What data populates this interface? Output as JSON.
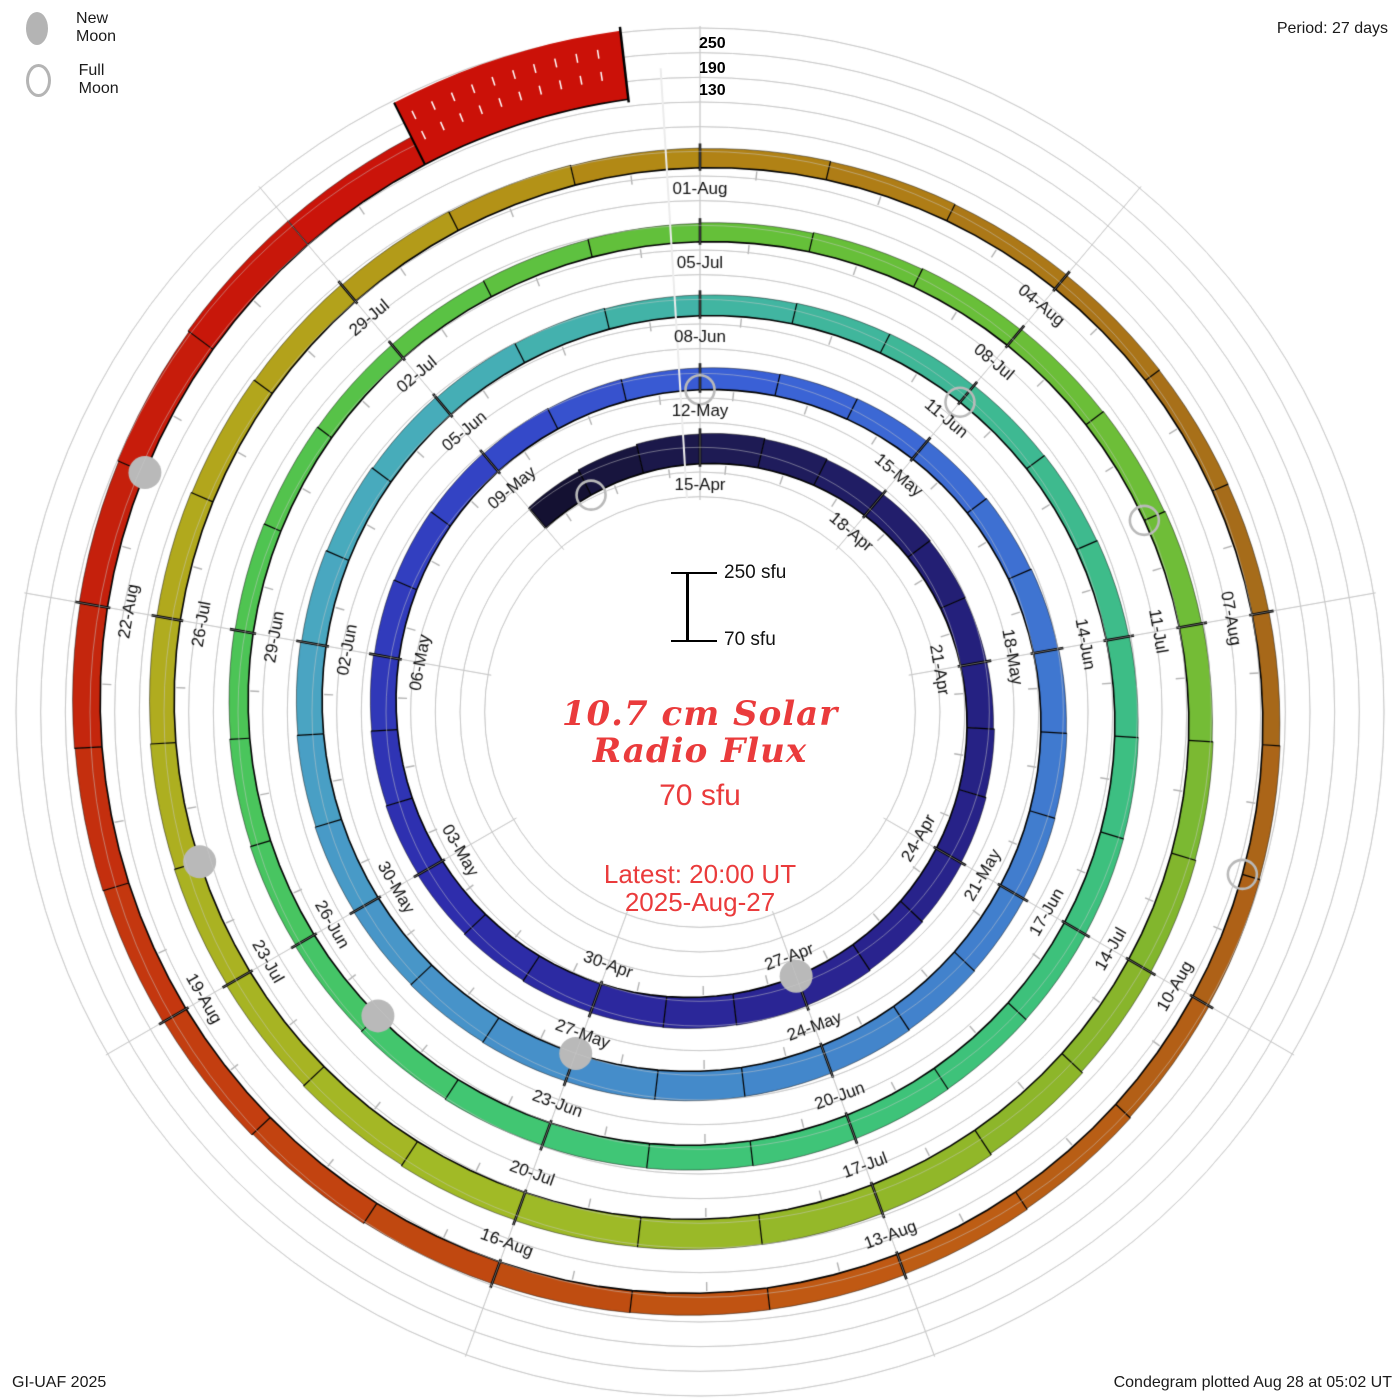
{
  "header": {
    "period_label": "Period: 27 days"
  },
  "legend": {
    "new_moon_label": "New Moon",
    "full_moon_label": "Full Moon"
  },
  "footer": {
    "credit": "GI-UAF 2025",
    "plotted": "Condegram plotted Aug 28 at 05:02 UT"
  },
  "center": {
    "title_line1": "10.7 cm Solar",
    "title_line2": "Radio Flux",
    "current_value": "70 sfu",
    "latest_line1": "Latest: 20:00 UT",
    "latest_line2": "2025-Aug-27"
  },
  "scale": {
    "max_label": "250 sfu",
    "min_label": "70 sfu",
    "axis_ticks": [
      "250",
      "190",
      "130"
    ]
  },
  "chart_data": {
    "type": "spiral-bar (condegram)",
    "title": "10.7 cm Solar Radio Flux",
    "units": "sfu",
    "period_days": 27,
    "start_date": "2025-Apr-12",
    "end_date": "2025-Aug-27",
    "latest_value_sfu": 70,
    "latest_time": "20:00 UT 2025-Aug-27",
    "flux_axis": {
      "min": 70,
      "max": 250,
      "ticks": [
        130,
        190,
        250
      ]
    },
    "direction": "clockwise, time spirals outward, one turn = 27 days",
    "date_labels": [
      {
        "t": 3,
        "text": "15-Apr",
        "flux": 152
      },
      {
        "t": 6,
        "text": "18-Apr",
        "flux": 146
      },
      {
        "t": 9,
        "text": "21-Apr",
        "flux": 140
      },
      {
        "t": 12,
        "text": "24-Apr",
        "flux": 148
      },
      {
        "t": 15,
        "text": "27-Apr",
        "flux": 155
      },
      {
        "t": 18,
        "text": "30-Apr",
        "flux": 152
      },
      {
        "t": 21,
        "text": "03-May",
        "flux": 145
      },
      {
        "t": 24,
        "text": "06-May",
        "flux": 138
      },
      {
        "t": 27,
        "text": "09-May",
        "flux": 132
      },
      {
        "t": 30,
        "text": "12-May",
        "flux": 128
      },
      {
        "t": 33,
        "text": "15-May",
        "flux": 132
      },
      {
        "t": 36,
        "text": "18-May",
        "flux": 138
      },
      {
        "t": 39,
        "text": "21-May",
        "flux": 142
      },
      {
        "t": 42,
        "text": "24-May",
        "flux": 148
      },
      {
        "t": 45,
        "text": "27-May",
        "flux": 150
      },
      {
        "t": 48,
        "text": "30-May",
        "flux": 145
      },
      {
        "t": 51,
        "text": "02-Jun",
        "flux": 138
      },
      {
        "t": 54,
        "text": "05-Jun",
        "flux": 130
      },
      {
        "t": 57,
        "text": "08-Jun",
        "flux": 125
      },
      {
        "t": 60,
        "text": "11-Jun",
        "flux": 128
      },
      {
        "t": 63,
        "text": "14-Jun",
        "flux": 132
      },
      {
        "t": 66,
        "text": "17-Jun",
        "flux": 135
      },
      {
        "t": 69,
        "text": "20-Jun",
        "flux": 138
      },
      {
        "t": 72,
        "text": "23-Jun",
        "flux": 135
      },
      {
        "t": 75,
        "text": "26-Jun",
        "flux": 128
      },
      {
        "t": 78,
        "text": "29-Jun",
        "flux": 120
      },
      {
        "t": 81,
        "text": "02-Jul",
        "flux": 116
      },
      {
        "t": 84,
        "text": "05-Jul",
        "flux": 120
      },
      {
        "t": 87,
        "text": "08-Jul",
        "flux": 126
      },
      {
        "t": 90,
        "text": "11-Jul",
        "flux": 132
      },
      {
        "t": 93,
        "text": "14-Jul",
        "flux": 140
      },
      {
        "t": 96,
        "text": "17-Jul",
        "flux": 152
      },
      {
        "t": 99,
        "text": "20-Jul",
        "flux": 150
      },
      {
        "t": 102,
        "text": "23-Jul",
        "flux": 142
      },
      {
        "t": 105,
        "text": "26-Jul",
        "flux": 135
      },
      {
        "t": 108,
        "text": "29-Jul",
        "flux": 128
      },
      {
        "t": 111,
        "text": "01-Aug",
        "flux": 122
      },
      {
        "t": 114,
        "text": "04-Aug",
        "flux": 118
      },
      {
        "t": 117,
        "text": "07-Aug",
        "flux": 115
      },
      {
        "t": 120,
        "text": "10-Aug",
        "flux": 120
      },
      {
        "t": 123,
        "text": "13-Aug",
        "flux": 128
      },
      {
        "t": 126,
        "text": "16-Aug",
        "flux": 130
      },
      {
        "t": 129,
        "text": "19-Aug",
        "flux": 140
      },
      {
        "t": 132,
        "text": "22-Aug",
        "flux": 145
      }
    ],
    "flux_points": [
      [
        0,
        140
      ],
      [
        3,
        152
      ],
      [
        6,
        146
      ],
      [
        9,
        140
      ],
      [
        12,
        148
      ],
      [
        15,
        155
      ],
      [
        18,
        152
      ],
      [
        21,
        145
      ],
      [
        24,
        138
      ],
      [
        27,
        132
      ],
      [
        30,
        128
      ],
      [
        33,
        132
      ],
      [
        36,
        138
      ],
      [
        39,
        142
      ],
      [
        42,
        148
      ],
      [
        45,
        150
      ],
      [
        48,
        145
      ],
      [
        51,
        138
      ],
      [
        54,
        130
      ],
      [
        57,
        125
      ],
      [
        60,
        128
      ],
      [
        63,
        132
      ],
      [
        66,
        135
      ],
      [
        69,
        138
      ],
      [
        72,
        135
      ],
      [
        75,
        128
      ],
      [
        78,
        120
      ],
      [
        81,
        116
      ],
      [
        84,
        120
      ],
      [
        87,
        126
      ],
      [
        90,
        132
      ],
      [
        93,
        140
      ],
      [
        96,
        152
      ],
      [
        99,
        150
      ],
      [
        102,
        142
      ],
      [
        105,
        135
      ],
      [
        108,
        128
      ],
      [
        111,
        122
      ],
      [
        114,
        118
      ],
      [
        117,
        115
      ],
      [
        120,
        120
      ],
      [
        123,
        128
      ],
      [
        126,
        130
      ],
      [
        129,
        140
      ],
      [
        132,
        145
      ],
      [
        135,
        155
      ],
      [
        136,
        150
      ]
    ],
    "moons": {
      "new": [
        {
          "date": "27-Apr",
          "t": 15
        },
        {
          "date": "27-May",
          "t": 45
        },
        {
          "date": "25-Jun",
          "t": 74
        },
        {
          "date": "24-Jul",
          "t": 103
        },
        {
          "date": "23-Aug",
          "t": 133
        }
      ],
      "full": [
        {
          "date": "13-Apr",
          "t": 1
        },
        {
          "date": "12-May",
          "t": 30
        },
        {
          "date": "11-Jun",
          "t": 60
        },
        {
          "date": "10-Jul",
          "t": 89
        },
        {
          "date": "09-Aug",
          "t": 119
        }
      ]
    },
    "colormap_stops": [
      [
        0,
        "#120f2c"
      ],
      [
        3,
        "#1d1a50"
      ],
      [
        9,
        "#252180"
      ],
      [
        15,
        "#2a2492"
      ],
      [
        21,
        "#2e2eae"
      ],
      [
        27,
        "#3345c6"
      ],
      [
        30,
        "#3a5ed6"
      ],
      [
        36,
        "#3f76d0"
      ],
      [
        42,
        "#4386cb"
      ],
      [
        48,
        "#4897c8"
      ],
      [
        51,
        "#4aa6c1"
      ],
      [
        54,
        "#46adb8"
      ],
      [
        57,
        "#41b4a3"
      ],
      [
        60,
        "#3eb894"
      ],
      [
        66,
        "#3dc17c"
      ],
      [
        72,
        "#40c675"
      ],
      [
        78,
        "#4dc453"
      ],
      [
        84,
        "#64c039"
      ],
      [
        90,
        "#70bd38"
      ],
      [
        93,
        "#86b42b"
      ],
      [
        99,
        "#a0bb27"
      ],
      [
        105,
        "#b1ab1e"
      ],
      [
        108,
        "#b3a01a"
      ],
      [
        111,
        "#b28414"
      ],
      [
        114,
        "#ab7618"
      ],
      [
        117,
        "#a56a1a"
      ],
      [
        120,
        "#b05f16"
      ],
      [
        123,
        "#c05c14"
      ],
      [
        126,
        "#bf4a10"
      ],
      [
        129,
        "#c43b10"
      ],
      [
        132,
        "#c4220c"
      ],
      [
        135,
        "#c9150a"
      ],
      [
        137.5,
        "#cc1208"
      ]
    ],
    "colors": {
      "grid": "#c9c9c9",
      "tick_major": "#000000",
      "tick_minor": "#b3b3b3",
      "moon_gray": "#b9b9b9",
      "label_text": "#111111",
      "accent_red_text": "#ea3b3c",
      "scale_segment_red": "#cb1108",
      "now_line": "#ececec"
    },
    "grid": "concentric gray circles every 1/3 rotation spacing, radial gray lines every 40 deg (3 days)",
    "legend_position": "top-left (moon phases), scale I-beam mid-left of center"
  }
}
